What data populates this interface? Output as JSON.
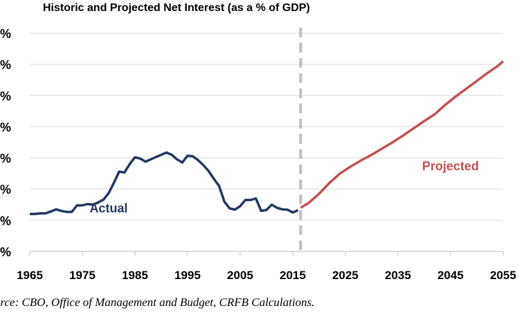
{
  "chart_data": {
    "type": "line",
    "title": "Historic and Projected Net Interest (as a % of GDP)",
    "source": "urce: CBO, Office of Management and Budget, CRFB Calculations.",
    "xlim": [
      1965,
      2055
    ],
    "ylim": [
      0,
      7
    ],
    "x_ticks": [
      "1965",
      "1975",
      "1985",
      "1995",
      "2005",
      "2015",
      "2025",
      "2035",
      "2045",
      "2055"
    ],
    "y_ticks": [
      "%",
      "%",
      "%",
      "%",
      "%",
      "%",
      "%",
      "%"
    ],
    "divider_year": 2016.5,
    "grid": true,
    "colors": {
      "actual": "#1f3864",
      "projected": "#c0504d",
      "divider": "#bfbfbf",
      "grid": "#d9d9d9"
    },
    "series": [
      {
        "name": "Actual",
        "x": [
          1965,
          1966,
          1967,
          1968,
          1969,
          1970,
          1971,
          1972,
          1973,
          1974,
          1975,
          1976,
          1977,
          1978,
          1979,
          1980,
          1981,
          1982,
          1983,
          1984,
          1985,
          1986,
          1987,
          1988,
          1989,
          1990,
          1991,
          1992,
          1993,
          1994,
          1995,
          1996,
          1997,
          1998,
          1999,
          2000,
          2001,
          2002,
          2003,
          2004,
          2005,
          2006,
          2007,
          2008,
          2009,
          2010,
          2011,
          2012,
          2013,
          2014,
          2015,
          2016
        ],
        "y": [
          1.2,
          1.2,
          1.22,
          1.22,
          1.28,
          1.35,
          1.3,
          1.27,
          1.27,
          1.48,
          1.48,
          1.52,
          1.5,
          1.57,
          1.66,
          1.87,
          2.2,
          2.56,
          2.53,
          2.8,
          3.02,
          2.98,
          2.88,
          2.95,
          3.03,
          3.1,
          3.17,
          3.1,
          2.95,
          2.85,
          3.07,
          3.05,
          2.93,
          2.77,
          2.58,
          2.33,
          2.1,
          1.6,
          1.38,
          1.34,
          1.45,
          1.65,
          1.65,
          1.7,
          1.3,
          1.33,
          1.5,
          1.4,
          1.35,
          1.34,
          1.25,
          1.32
        ]
      },
      {
        "name": "Projected",
        "x": [
          2016.5,
          2018,
          2020,
          2022,
          2024,
          2026,
          2028,
          2030,
          2032,
          2034,
          2036,
          2038,
          2040,
          2042,
          2044,
          2046,
          2048,
          2050,
          2052,
          2054,
          2055
        ],
        "y": [
          1.4,
          1.55,
          1.85,
          2.2,
          2.5,
          2.72,
          2.92,
          3.1,
          3.3,
          3.5,
          3.72,
          3.95,
          4.18,
          4.4,
          4.7,
          4.97,
          5.22,
          5.47,
          5.72,
          5.95,
          6.1
        ]
      }
    ],
    "annotations": [
      {
        "text": "Actual",
        "x": 1980,
        "y": 1.25
      },
      {
        "text": "Projected",
        "x": 2045,
        "y": 2.6
      }
    ]
  }
}
